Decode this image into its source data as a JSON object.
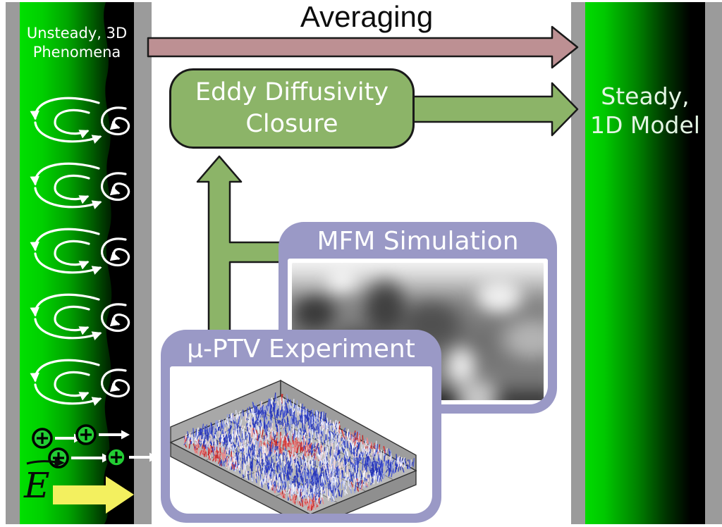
{
  "figure": {
    "averaging_label": "Averaging",
    "left_strip": {
      "title_line1": "Unsteady, 3D",
      "title_line2": "Phenomena",
      "e_field_label": "E"
    },
    "right_strip": {
      "title_line1": "Steady,",
      "title_line2": "1D Model"
    },
    "eddy_box": {
      "line1": "Eddy Diffusivity",
      "line2": "Closure"
    },
    "mfm_box": {
      "title": "MFM Simulation"
    },
    "ptv_box": {
      "title": "μ-PTV Experiment"
    }
  },
  "colors": {
    "averaging_arrow_pink": "#bd9093",
    "closure_green": "#8cb468",
    "panel_lavender": "#9a99c6",
    "strip_bright_green": "#00d800",
    "strip_gray": "#9b9b9b",
    "ion_green": "#22cc33",
    "e_field_arrow_yellow": "#f3f05f",
    "outline_black": "#191919"
  }
}
